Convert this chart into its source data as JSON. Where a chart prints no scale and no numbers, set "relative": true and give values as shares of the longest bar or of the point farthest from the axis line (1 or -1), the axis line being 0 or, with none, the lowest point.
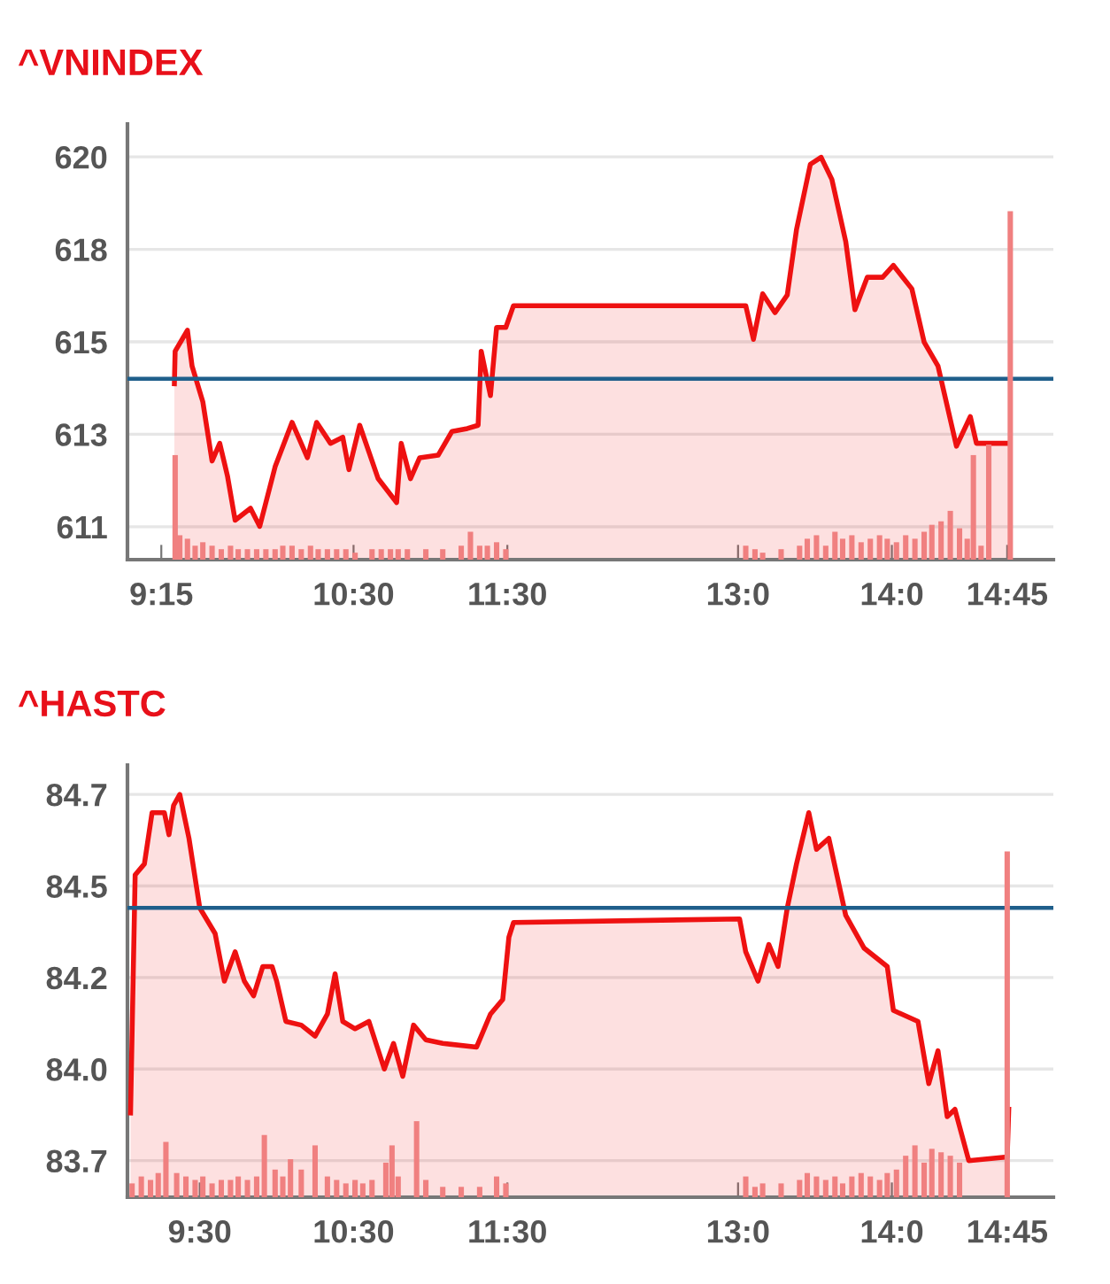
{
  "chart_data": [
    {
      "type": "area",
      "title": "^VNINDEX",
      "x": [
        9.335,
        9.34,
        9.42,
        9.45,
        9.52,
        9.58,
        9.63,
        9.68,
        9.73,
        9.83,
        9.89,
        9.99,
        10.1,
        10.2,
        10.26,
        10.35,
        10.43,
        10.47,
        10.54,
        10.66,
        10.78,
        10.81,
        10.87,
        10.93,
        11.05,
        11.14,
        11.24,
        11.31,
        11.33,
        11.39,
        11.43,
        11.49,
        11.54,
        13.05,
        13.1,
        13.16,
        13.24,
        13.32,
        13.38,
        13.47,
        13.54,
        13.61,
        13.7,
        13.76,
        13.84,
        13.94,
        14.01,
        14.13,
        14.21,
        14.3,
        14.42,
        14.51,
        14.55,
        14.76
      ],
      "series": [
        {
          "color": "#ee1111",
          "values": [
            614.48,
            615.27,
            615.78,
            614.91,
            614.04,
            612.6,
            613.03,
            612.24,
            611.16,
            611.45,
            611.01,
            612.46,
            613.54,
            612.68,
            613.54,
            613.03,
            613.18,
            612.39,
            613.47,
            612.17,
            611.59,
            613.03,
            612.17,
            612.68,
            612.74,
            613.32,
            613.39,
            613.47,
            615.27,
            614.19,
            615.85,
            615.85,
            616.38,
            616.38,
            615.56,
            616.67,
            616.21,
            616.64,
            618.23,
            619.82,
            619.99,
            619.45,
            617.94,
            616.28,
            617.07,
            617.07,
            617.36,
            616.79,
            615.49,
            614.91,
            612.96,
            613.68,
            613.03,
            613.03
          ]
        }
      ],
      "xlim": [
        9.03,
        15.05
      ],
      "ylim": [
        610.2,
        620.8
      ],
      "xticks": [
        {
          "value": 9.25,
          "label": "9:15"
        },
        {
          "value": 10.5,
          "label": "10:30"
        },
        {
          "value": 11.5,
          "label": "11:30"
        },
        {
          "value": 13,
          "label": "13:0"
        },
        {
          "value": 14,
          "label": "14:0"
        },
        {
          "value": 14.75,
          "label": "14:45"
        }
      ],
      "yticks": [
        611,
        {
          "value": 613.25,
          "label": "613"
        },
        {
          "value": 615.5,
          "label": "615"
        },
        {
          "value": 617.75,
          "label": "618"
        },
        620
      ],
      "ref_lines": [
        {
          "axis": "y",
          "value": 614.6,
          "color": "#1f5f8b"
        }
      ],
      "grid": "y",
      "legend": false
    },
    {
      "type": "bar",
      "relative": true,
      "tick_labels": false,
      "xlim": [
        9.03,
        15.05
      ],
      "x": [
        9.34,
        9.37,
        9.42,
        9.47,
        9.52,
        9.58,
        9.64,
        9.7,
        9.75,
        9.81,
        9.87,
        9.93,
        9.99,
        10.04,
        10.1,
        10.16,
        10.22,
        10.27,
        10.33,
        10.39,
        10.45,
        10.51,
        10.62,
        10.68,
        10.74,
        10.79,
        10.85,
        10.97,
        11.08,
        11.2,
        11.26,
        11.32,
        11.37,
        11.43,
        11.49,
        13.05,
        13.11,
        13.16,
        13.28,
        13.4,
        13.45,
        13.51,
        13.57,
        13.63,
        13.68,
        13.74,
        13.8,
        13.86,
        13.92,
        13.97,
        14.03,
        14.09,
        14.15,
        14.21,
        14.26,
        14.32,
        14.38,
        14.44,
        14.49,
        14.53,
        14.58,
        14.63,
        14.77
      ],
      "series": [
        {
          "color": "#f08080",
          "values": [
            0.3,
            0.07,
            0.06,
            0.04,
            0.05,
            0.04,
            0.03,
            0.04,
            0.03,
            0.03,
            0.03,
            0.03,
            0.03,
            0.04,
            0.04,
            0.03,
            0.04,
            0.03,
            0.03,
            0.03,
            0.03,
            0.02,
            0.03,
            0.03,
            0.03,
            0.03,
            0.03,
            0.03,
            0.03,
            0.04,
            0.08,
            0.04,
            0.04,
            0.05,
            0.03,
            0.04,
            0.03,
            0.02,
            0.03,
            0.04,
            0.06,
            0.07,
            0.04,
            0.08,
            0.06,
            0.07,
            0.05,
            0.06,
            0.07,
            0.06,
            0.05,
            0.07,
            0.06,
            0.08,
            0.1,
            0.11,
            0.14,
            0.09,
            0.06,
            0.3,
            0.04,
            0.33,
            1
          ]
        }
      ]
    },
    {
      "type": "area",
      "title": "^HASTC",
      "x": [
        9.05,
        9.08,
        9.14,
        9.19,
        9.27,
        9.3,
        9.33,
        9.37,
        9.43,
        9.5,
        9.6,
        9.66,
        9.73,
        9.79,
        9.85,
        9.91,
        9.97,
        10.0,
        10.06,
        10.16,
        10.25,
        10.33,
        10.38,
        10.43,
        10.51,
        10.6,
        10.7,
        10.76,
        10.82,
        10.89,
        10.97,
        11.08,
        11.3,
        11.39,
        11.47,
        11.51,
        11.54,
        13.01,
        13.05,
        13.13,
        13.2,
        13.26,
        13.32,
        13.38,
        13.46,
        13.51,
        13.59,
        13.7,
        13.82,
        13.97,
        14.01,
        14.17,
        14.24,
        14.3,
        14.36,
        14.41,
        14.5,
        14.75,
        14.76
      ],
      "series": [
        {
          "color": "#ee1111",
          "values": [
            83.83,
            84.48,
            84.51,
            84.65,
            84.65,
            84.59,
            84.67,
            84.7,
            84.58,
            84.39,
            84.32,
            84.19,
            84.27,
            84.19,
            84.15,
            84.23,
            84.23,
            84.19,
            84.08,
            84.07,
            84.04,
            84.1,
            84.21,
            84.08,
            84.06,
            84.08,
            83.95,
            84.02,
            83.93,
            84.07,
            84.03,
            84.02,
            84.01,
            84.1,
            84.14,
            84.31,
            84.35,
            84.36,
            84.27,
            84.19,
            84.29,
            84.23,
            84.39,
            84.51,
            84.65,
            84.55,
            84.58,
            84.37,
            84.28,
            84.23,
            84.11,
            84.08,
            83.91,
            84.0,
            83.82,
            83.84,
            83.7,
            83.71,
            83.84
          ]
        }
      ],
      "xlim": [
        9.03,
        15.05
      ],
      "ylim": [
        83.6,
        84.78
      ],
      "xticks": [
        {
          "value": 9.5,
          "label": "9:30"
        },
        {
          "value": 10.5,
          "label": "10:30"
        },
        {
          "value": 11.5,
          "label": "11:30"
        },
        {
          "value": 13,
          "label": "13:0"
        },
        {
          "value": 14,
          "label": "14:0"
        },
        {
          "value": 14.75,
          "label": "14:45"
        }
      ],
      "yticks": [
        83.7,
        {
          "value": 83.95,
          "label": "84.0"
        },
        84.2,
        {
          "value": 84.45,
          "label": "84.5"
        },
        84.7
      ],
      "ref_lines": [
        {
          "axis": "y",
          "value": 84.39,
          "color": "#1f5f8b"
        }
      ],
      "grid": "y",
      "legend": false
    },
    {
      "type": "bar",
      "relative": true,
      "tick_labels": false,
      "xlim": [
        9.03,
        15.05
      ],
      "x": [
        9.06,
        9.12,
        9.18,
        9.23,
        9.28,
        9.35,
        9.41,
        9.47,
        9.52,
        9.58,
        9.64,
        9.7,
        9.75,
        9.81,
        9.87,
        9.92,
        9.99,
        10.04,
        10.09,
        10.16,
        10.25,
        10.33,
        10.39,
        10.45,
        10.51,
        10.56,
        10.62,
        10.71,
        10.75,
        10.79,
        10.91,
        10.97,
        11.08,
        11.2,
        11.32,
        11.43,
        11.49,
        13.05,
        13.11,
        13.16,
        13.28,
        13.4,
        13.45,
        13.51,
        13.57,
        13.63,
        13.68,
        13.74,
        13.8,
        13.86,
        13.92,
        13.97,
        14.03,
        14.09,
        14.15,
        14.21,
        14.26,
        14.32,
        14.38,
        14.44,
        14.75
      ],
      "series": [
        {
          "color": "#f08080",
          "values": [
            0.04,
            0.06,
            0.05,
            0.07,
            0.16,
            0.07,
            0.06,
            0.05,
            0.06,
            0.04,
            0.05,
            0.05,
            0.06,
            0.05,
            0.06,
            0.18,
            0.08,
            0.06,
            0.11,
            0.08,
            0.15,
            0.06,
            0.05,
            0.04,
            0.05,
            0.04,
            0.05,
            0.1,
            0.15,
            0.06,
            0.22,
            0.05,
            0.03,
            0.03,
            0.03,
            0.06,
            0.04,
            0.06,
            0.03,
            0.04,
            0.04,
            0.05,
            0.07,
            0.06,
            0.05,
            0.06,
            0.04,
            0.06,
            0.07,
            0.06,
            0.05,
            0.07,
            0.08,
            0.12,
            0.15,
            0.1,
            0.14,
            0.13,
            0.12,
            0.1,
            1
          ]
        }
      ]
    }
  ]
}
